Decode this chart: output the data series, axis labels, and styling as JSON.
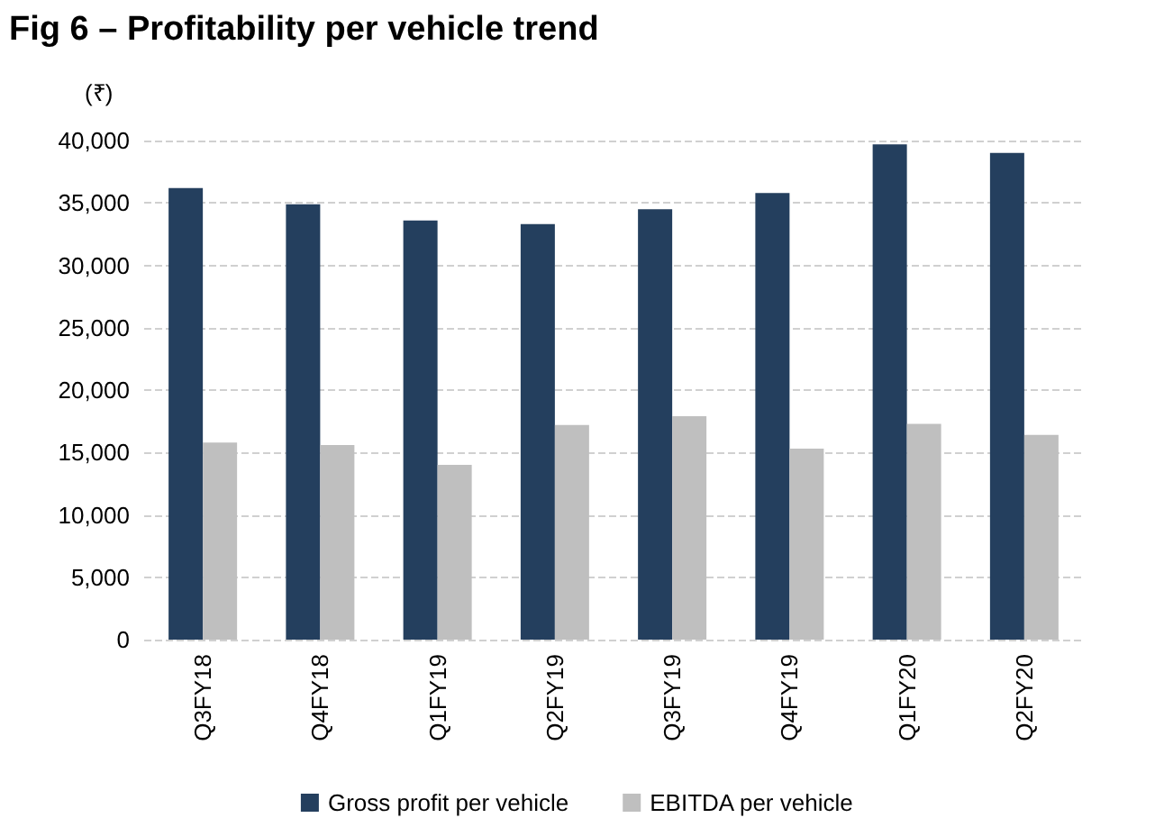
{
  "chart_data": {
    "type": "bar",
    "title": "Fig 6 – Profitability per vehicle trend",
    "ylabel": "(₹)",
    "categories": [
      "Q3FY18",
      "Q4FY18",
      "Q1FY19",
      "Q2FY19",
      "Q3FY19",
      "Q4FY19",
      "Q1FY20",
      "Q2FY20"
    ],
    "series": [
      {
        "name": "Gross profit per vehicle",
        "color": "#243f5e",
        "values": [
          36200,
          34900,
          33600,
          33300,
          34500,
          35800,
          39700,
          39000
        ]
      },
      {
        "name": "EBITDA per vehicle",
        "color": "#bfbfbf",
        "values": [
          15800,
          15600,
          14000,
          17200,
          17900,
          15300,
          17300,
          16400
        ]
      }
    ],
    "ylim": [
      0,
      40000
    ],
    "yticks": [
      0,
      {
        "value": 5000,
        "label": "5,000"
      },
      {
        "value": 10000,
        "label": "10,000"
      },
      {
        "value": 15000,
        "label": "15,000"
      },
      {
        "value": 20000,
        "label": "20,000"
      },
      {
        "value": 25000,
        "label": "25,000"
      },
      {
        "value": 30000,
        "label": "30,000"
      },
      {
        "value": 35000,
        "label": "35,000"
      },
      {
        "value": 40000,
        "label": "40,000"
      }
    ],
    "grid": "y",
    "legend": "bottom"
  }
}
